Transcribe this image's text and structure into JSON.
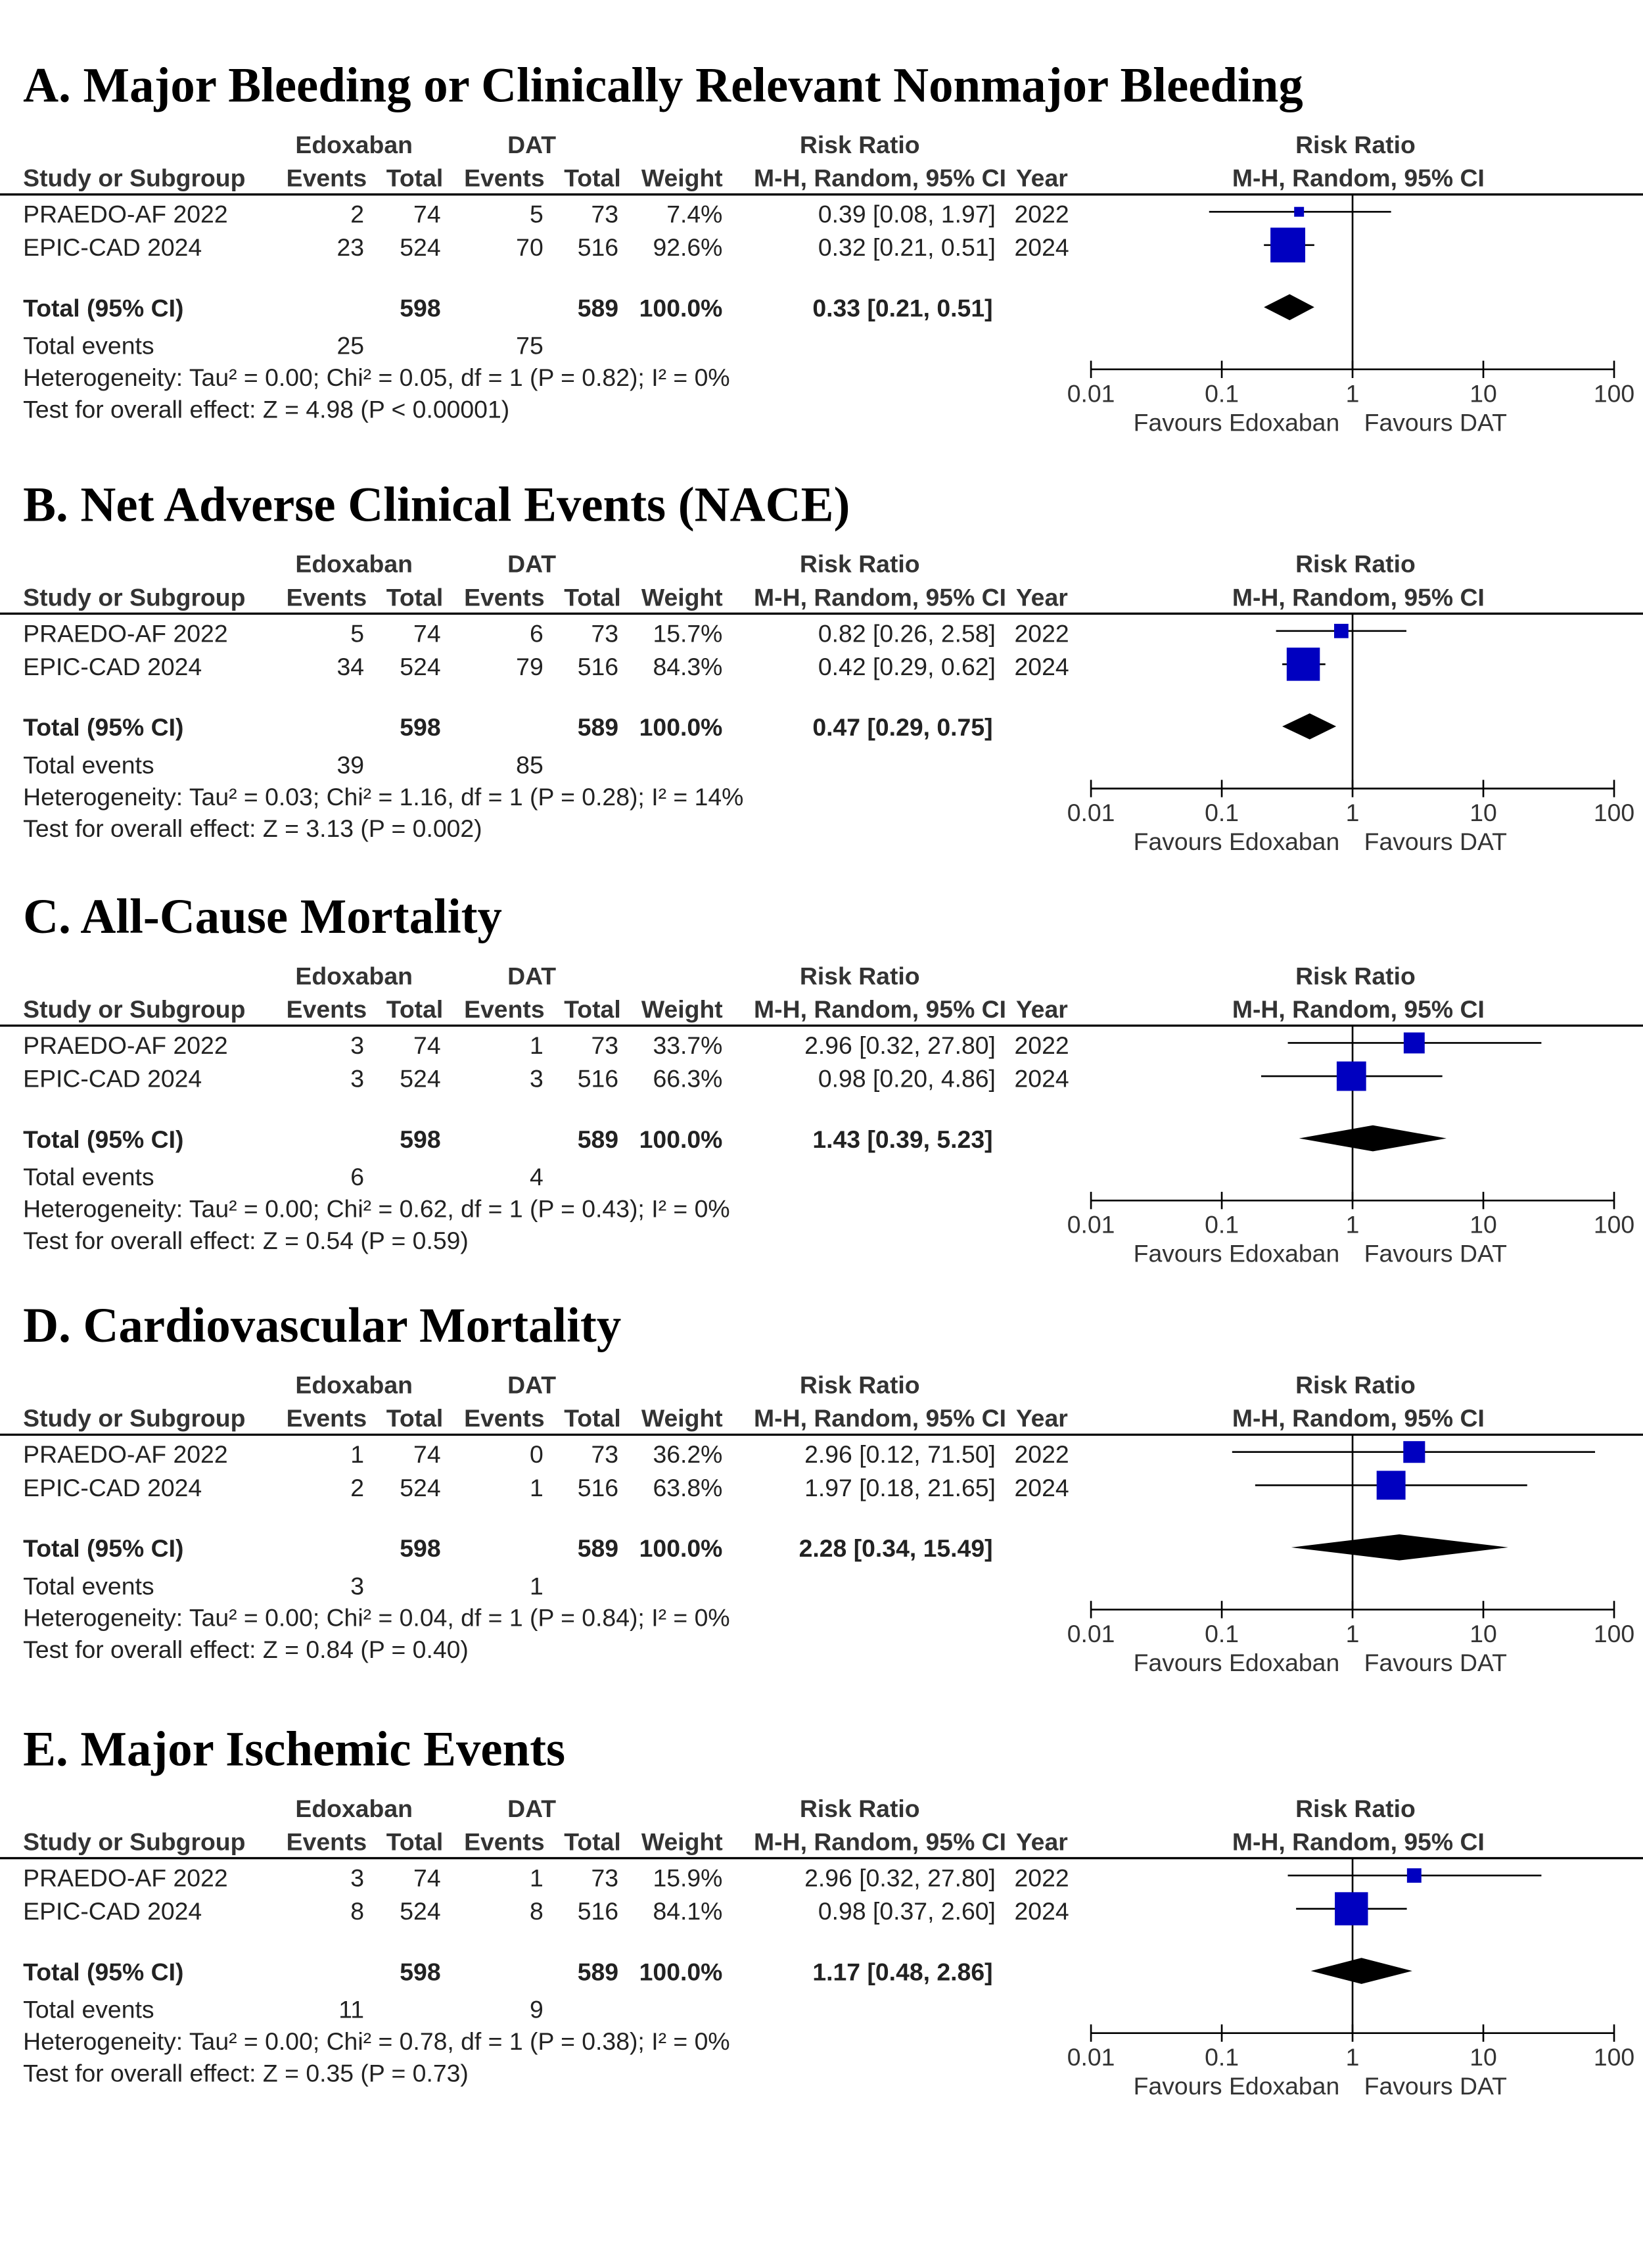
{
  "chart_data": [
    {
      "type": "forest",
      "title": "A. Major Bleeding or Clinically Relevant Nonmajor Bleeding",
      "columns": {
        "group_1": "Edoxaban",
        "group_2": "DAT",
        "effect": "Risk Ratio",
        "study": "Study or Subgroup",
        "events_1": "Events",
        "total_1": "Total",
        "events_2": "Events",
        "total_2": "Total",
        "weight": "Weight",
        "method": "M-H, Random, 95% CI",
        "year": "Year",
        "plot_effect": "Risk Ratio",
        "plot_method": "M-H, Random, 95% CI"
      },
      "studies": [
        {
          "name": "PRAEDO-AF 2022",
          "events_1": 2,
          "total_1": 74,
          "events_2": 5,
          "total_2": 73,
          "weight": 7.4,
          "weight_label": "7.4%",
          "rr": 0.39,
          "ci": [
            0.08,
            1.97
          ],
          "rr_label": "0.39 [0.08, 1.97]",
          "year": 2022
        },
        {
          "name": "EPIC-CAD 2024",
          "events_1": 23,
          "total_1": 524,
          "events_2": 70,
          "total_2": 516,
          "weight": 92.6,
          "weight_label": "92.6%",
          "rr": 0.32,
          "ci": [
            0.21,
            0.51
          ],
          "rr_label": "0.32 [0.21, 0.51]",
          "year": 2024
        }
      ],
      "total": {
        "label": "Total (95% CI)",
        "total_1": 598,
        "total_2": 589,
        "weight_label": "100.0%",
        "rr": 0.33,
        "ci": [
          0.21,
          0.51
        ],
        "rr_label": "0.33 [0.21, 0.51]"
      },
      "total_events": {
        "label": "Total events",
        "events_1": 25,
        "events_2": 75
      },
      "heterogeneity": "Heterogeneity: Tau² = 0.00; Chi² = 0.05, df = 1 (P = 0.82); I² = 0%",
      "overall_effect": "Test for overall effect: Z = 4.98 (P < 0.00001)",
      "xlim": [
        0.01,
        100
      ],
      "xticks": [
        0.01,
        0.1,
        1,
        10,
        100
      ],
      "log_scale": true,
      "favours_left": "Favours Edoxaban",
      "favours_right": "Favours DAT",
      "color": "#0000c0",
      "diamond_color": "#000000"
    },
    {
      "type": "forest",
      "title": "B. Net Adverse Clinical Events (NACE)",
      "columns": {
        "group_1": "Edoxaban",
        "group_2": "DAT",
        "effect": "Risk Ratio",
        "study": "Study or Subgroup",
        "events_1": "Events",
        "total_1": "Total",
        "events_2": "Events",
        "total_2": "Total",
        "weight": "Weight",
        "method": "M-H, Random, 95% CI",
        "year": "Year",
        "plot_effect": "Risk Ratio",
        "plot_method": "M-H, Random, 95% CI"
      },
      "studies": [
        {
          "name": "PRAEDO-AF 2022",
          "events_1": 5,
          "total_1": 74,
          "events_2": 6,
          "total_2": 73,
          "weight": 15.7,
          "weight_label": "15.7%",
          "rr": 0.82,
          "ci": [
            0.26,
            2.58
          ],
          "rr_label": "0.82 [0.26, 2.58]",
          "year": 2022
        },
        {
          "name": "EPIC-CAD 2024",
          "events_1": 34,
          "total_1": 524,
          "events_2": 79,
          "total_2": 516,
          "weight": 84.3,
          "weight_label": "84.3%",
          "rr": 0.42,
          "ci": [
            0.29,
            0.62
          ],
          "rr_label": "0.42 [0.29, 0.62]",
          "year": 2024
        }
      ],
      "total": {
        "label": "Total (95% CI)",
        "total_1": 598,
        "total_2": 589,
        "weight_label": "100.0%",
        "rr": 0.47,
        "ci": [
          0.29,
          0.75
        ],
        "rr_label": "0.47 [0.29, 0.75]"
      },
      "total_events": {
        "label": "Total events",
        "events_1": 39,
        "events_2": 85
      },
      "heterogeneity": "Heterogeneity: Tau² = 0.03; Chi² = 1.16, df = 1 (P = 0.28); I² = 14%",
      "overall_effect": "Test for overall effect: Z = 3.13 (P = 0.002)",
      "xlim": [
        0.01,
        100
      ],
      "xticks": [
        0.01,
        0.1,
        1,
        10,
        100
      ],
      "log_scale": true,
      "favours_left": "Favours Edoxaban",
      "favours_right": "Favours DAT",
      "color": "#0000c0",
      "diamond_color": "#000000"
    },
    {
      "type": "forest",
      "title": "C. All-Cause Mortality",
      "columns": {
        "group_1": "Edoxaban",
        "group_2": "DAT",
        "effect": "Risk Ratio",
        "study": "Study or Subgroup",
        "events_1": "Events",
        "total_1": "Total",
        "events_2": "Events",
        "total_2": "Total",
        "weight": "Weight",
        "method": "M-H, Random, 95% CI",
        "year": "Year",
        "plot_effect": "Risk Ratio",
        "plot_method": "M-H, Random, 95% CI"
      },
      "studies": [
        {
          "name": "PRAEDO-AF 2022",
          "events_1": 3,
          "total_1": 74,
          "events_2": 1,
          "total_2": 73,
          "weight": 33.7,
          "weight_label": "33.7%",
          "rr": 2.96,
          "ci": [
            0.32,
            27.8
          ],
          "rr_label": "2.96 [0.32, 27.80]",
          "year": 2022
        },
        {
          "name": "EPIC-CAD 2024",
          "events_1": 3,
          "total_1": 524,
          "events_2": 3,
          "total_2": 516,
          "weight": 66.3,
          "weight_label": "66.3%",
          "rr": 0.98,
          "ci": [
            0.2,
            4.86
          ],
          "rr_label": "0.98 [0.20, 4.86]",
          "year": 2024
        }
      ],
      "total": {
        "label": "Total (95% CI)",
        "total_1": 598,
        "total_2": 589,
        "weight_label": "100.0%",
        "rr": 1.43,
        "ci": [
          0.39,
          5.23
        ],
        "rr_label": "1.43 [0.39, 5.23]"
      },
      "total_events": {
        "label": "Total events",
        "events_1": 6,
        "events_2": 4
      },
      "heterogeneity": "Heterogeneity: Tau² = 0.00; Chi² = 0.62, df = 1 (P = 0.43); I² = 0%",
      "overall_effect": "Test for overall effect: Z = 0.54 (P = 0.59)",
      "xlim": [
        0.01,
        100
      ],
      "xticks": [
        0.01,
        0.1,
        1,
        10,
        100
      ],
      "log_scale": true,
      "favours_left": "Favours Edoxaban",
      "favours_right": "Favours DAT",
      "color": "#0000c0",
      "diamond_color": "#000000"
    },
    {
      "type": "forest",
      "title": "D. Cardiovascular Mortality",
      "columns": {
        "group_1": "Edoxaban",
        "group_2": "DAT",
        "effect": "Risk Ratio",
        "study": "Study or Subgroup",
        "events_1": "Events",
        "total_1": "Total",
        "events_2": "Events",
        "total_2": "Total",
        "weight": "Weight",
        "method": "M-H, Random, 95% CI",
        "year": "Year",
        "plot_effect": "Risk Ratio",
        "plot_method": "M-H, Random, 95% CI"
      },
      "studies": [
        {
          "name": "PRAEDO-AF 2022",
          "events_1": 1,
          "total_1": 74,
          "events_2": 0,
          "total_2": 73,
          "weight": 36.2,
          "weight_label": "36.2%",
          "rr": 2.96,
          "ci": [
            0.12,
            71.5
          ],
          "rr_label": "2.96 [0.12, 71.50]",
          "year": 2022
        },
        {
          "name": "EPIC-CAD 2024",
          "events_1": 2,
          "total_1": 524,
          "events_2": 1,
          "total_2": 516,
          "weight": 63.8,
          "weight_label": "63.8%",
          "rr": 1.97,
          "ci": [
            0.18,
            21.65
          ],
          "rr_label": "1.97 [0.18, 21.65]",
          "year": 2024
        }
      ],
      "total": {
        "label": "Total (95% CI)",
        "total_1": 598,
        "total_2": 589,
        "weight_label": "100.0%",
        "rr": 2.28,
        "ci": [
          0.34,
          15.49
        ],
        "rr_label": "2.28 [0.34, 15.49]"
      },
      "total_events": {
        "label": "Total events",
        "events_1": 3,
        "events_2": 1
      },
      "heterogeneity": "Heterogeneity: Tau² = 0.00; Chi² = 0.04, df = 1 (P = 0.84); I² = 0%",
      "overall_effect": "Test for overall effect: Z = 0.84 (P = 0.40)",
      "xlim": [
        0.01,
        100
      ],
      "xticks": [
        0.01,
        0.1,
        1,
        10,
        100
      ],
      "log_scale": true,
      "favours_left": "Favours Edoxaban",
      "favours_right": "Favours DAT",
      "color": "#0000c0",
      "diamond_color": "#000000"
    },
    {
      "type": "forest",
      "title": "E. Major Ischemic Events",
      "columns": {
        "group_1": "Edoxaban",
        "group_2": "DAT",
        "effect": "Risk Ratio",
        "study": "Study or Subgroup",
        "events_1": "Events",
        "total_1": "Total",
        "events_2": "Events",
        "total_2": "Total",
        "weight": "Weight",
        "method": "M-H, Random, 95% CI",
        "year": "Year",
        "plot_effect": "Risk Ratio",
        "plot_method": "M-H, Random, 95% CI"
      },
      "studies": [
        {
          "name": "PRAEDO-AF 2022",
          "events_1": 3,
          "total_1": 74,
          "events_2": 1,
          "total_2": 73,
          "weight": 15.9,
          "weight_label": "15.9%",
          "rr": 2.96,
          "ci": [
            0.32,
            27.8
          ],
          "rr_label": "2.96 [0.32, 27.80]",
          "year": 2022
        },
        {
          "name": "EPIC-CAD 2024",
          "events_1": 8,
          "total_1": 524,
          "events_2": 8,
          "total_2": 516,
          "weight": 84.1,
          "weight_label": "84.1%",
          "rr": 0.98,
          "ci": [
            0.37,
            2.6
          ],
          "rr_label": "0.98 [0.37, 2.60]",
          "year": 2024
        }
      ],
      "total": {
        "label": "Total (95% CI)",
        "total_1": 598,
        "total_2": 589,
        "weight_label": "100.0%",
        "rr": 1.17,
        "ci": [
          0.48,
          2.86
        ],
        "rr_label": "1.17 [0.48, 2.86]"
      },
      "total_events": {
        "label": "Total events",
        "events_1": 11,
        "events_2": 9
      },
      "heterogeneity": "Heterogeneity: Tau² = 0.00; Chi² = 0.78, df = 1 (P = 0.38); I² = 0%",
      "overall_effect": "Test for overall effect: Z = 0.35 (P = 0.73)",
      "xlim": [
        0.01,
        100
      ],
      "xticks": [
        0.01,
        0.1,
        1,
        10,
        100
      ],
      "log_scale": true,
      "favours_left": "Favours Edoxaban",
      "favours_right": "Favours DAT",
      "color": "#0000c0",
      "diamond_color": "#000000"
    }
  ]
}
